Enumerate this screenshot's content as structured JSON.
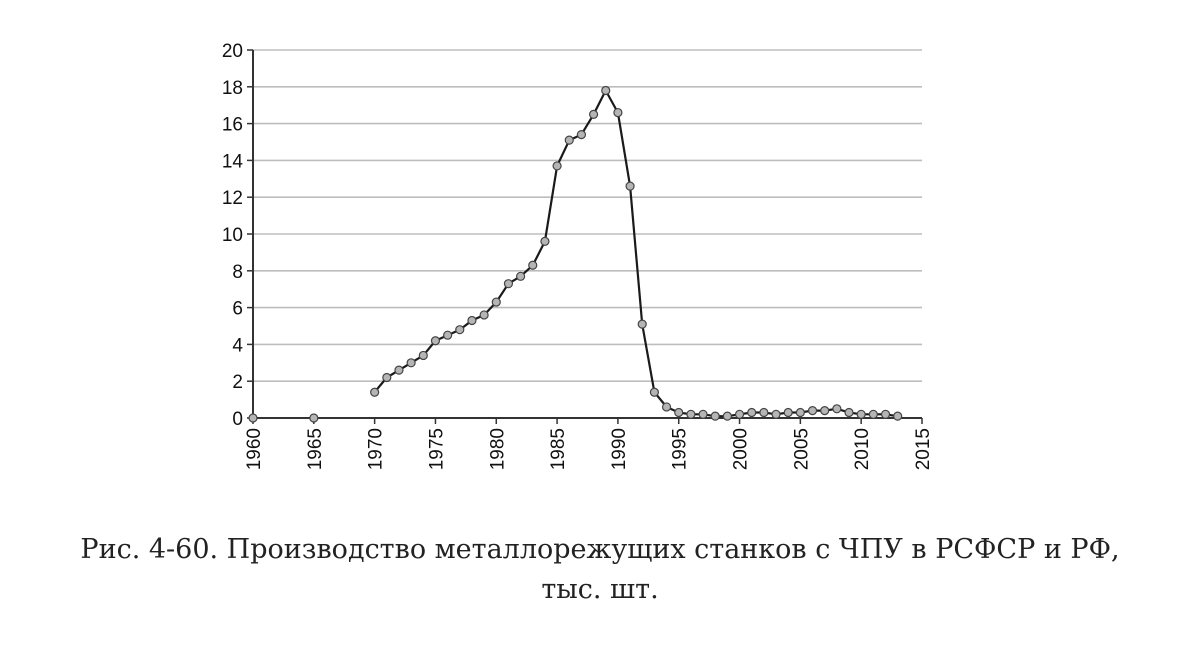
{
  "chart_data": {
    "type": "line",
    "title": "",
    "xlabel": "",
    "ylabel": "",
    "xlim": [
      1960,
      2015
    ],
    "ylim": [
      0,
      20
    ],
    "x_ticks": [
      "1960",
      "1965",
      "1970",
      "1975",
      "1980",
      "1985",
      "1990",
      "1995",
      "2000",
      "2005",
      "2010",
      "2015"
    ],
    "y_ticks": [
      "0",
      "2",
      "4",
      "6",
      "8",
      "10",
      "12",
      "14",
      "16",
      "18",
      "20"
    ],
    "grid": true,
    "legend": "none",
    "colors": {
      "line": "#1a1a1a",
      "marker_fill": "#b5b5b5",
      "grid": "#bdbdbd",
      "axis": "#333333"
    },
    "series": [
      {
        "x": [
          1960,
          1965
        ],
        "y": [
          0.0,
          0.0
        ]
      },
      {
        "x": [
          1970,
          1971,
          1972,
          1973,
          1974,
          1975,
          1976,
          1977,
          1978,
          1979,
          1980,
          1981,
          1982,
          1983,
          1984,
          1985,
          1986,
          1987,
          1988,
          1989,
          1990,
          1991,
          1992,
          1993,
          1994,
          1995,
          1996,
          1997,
          1998,
          1999,
          2000,
          2001,
          2002,
          2003,
          2004,
          2005,
          2006,
          2007,
          2008,
          2009,
          2010,
          2011,
          2012,
          2013
        ],
        "y": [
          1.4,
          2.2,
          2.6,
          3.0,
          3.4,
          4.2,
          4.5,
          4.8,
          5.3,
          5.6,
          6.3,
          7.3,
          7.7,
          8.3,
          9.6,
          13.7,
          15.1,
          15.4,
          16.5,
          17.8,
          16.6,
          12.6,
          5.1,
          1.4,
          0.6,
          0.3,
          0.2,
          0.2,
          0.1,
          0.1,
          0.2,
          0.3,
          0.3,
          0.2,
          0.3,
          0.3,
          0.4,
          0.4,
          0.5,
          0.3,
          0.2,
          0.2,
          0.2,
          0.1
        ]
      }
    ]
  },
  "caption": {
    "line1": "Рис. 4-60. Производство металлорежущих станков с ЧПУ в РСФСР и РФ,",
    "line2": "тыс. шт."
  }
}
